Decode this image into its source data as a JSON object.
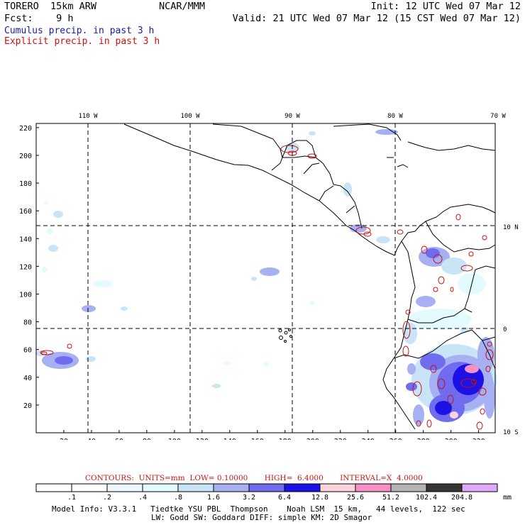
{
  "header": {
    "model_name": "TORERO  15km ARW",
    "forecast": "Fcst:    9 h",
    "center": "NCAR/MMM",
    "init": "Init: 12 UTC Wed 07 Mar 12",
    "valid": "Valid: 21 UTC Wed 07 Mar 12 (15 CST Wed 07 Mar 12)"
  },
  "fields": {
    "cumulus": "Cumulus precip. in past 3 h",
    "explicit": "Explicit precip. in past 3 h",
    "cumulus_color": "#1a1aa6",
    "explicit_color": "#cc1111"
  },
  "map": {
    "top_lon_labels": [
      "110 W",
      "100 W",
      "90 W",
      "80 W",
      "70 W"
    ],
    "right_lat_labels": [
      "10 N",
      "0",
      "10 S"
    ],
    "grid_x_ticks": [
      "20",
      "40",
      "60",
      "80",
      "100",
      "120",
      "140",
      "160",
      "180",
      "200",
      "220",
      "240",
      "260",
      "280",
      "300",
      "320"
    ],
    "grid_y_ticks": [
      "20",
      "40",
      "60",
      "80",
      "100",
      "120",
      "140",
      "160",
      "180",
      "200",
      "220"
    ]
  },
  "contours": {
    "label": "CONTOURS:",
    "units": "UNITS=mm",
    "low": "LOW= 0.10000",
    "high": "HIGH=  6.4000",
    "interval": "INTERVAL=X  4.0000"
  },
  "colorbar": {
    "labels": [
      ".1",
      ".2",
      ".4",
      ".8",
      "1.6",
      "3.2",
      "6.4",
      "12.8",
      "25.6",
      "51.2",
      "102.4",
      "204.8"
    ],
    "unit": "mm",
    "colors": [
      "#ffffff",
      "#ffffff",
      "#eef7ff",
      "#e3fbff",
      "#c8e4f6",
      "#a6b0f2",
      "#6f6cf0",
      "#1d12e6",
      "#fbd3db",
      "#f790c4",
      "#b4b4b4",
      "#363636",
      "#dfaaf7"
    ]
  },
  "model_info": {
    "line1": "Model Info: V3.3.1   Tiedtke YSU PBL  Thompson    Noah LSM  15 km,   44 levels,  122 sec",
    "line2": "LW: Godd SW: Goddard DIFF: simple KM: 2D Smagor"
  }
}
